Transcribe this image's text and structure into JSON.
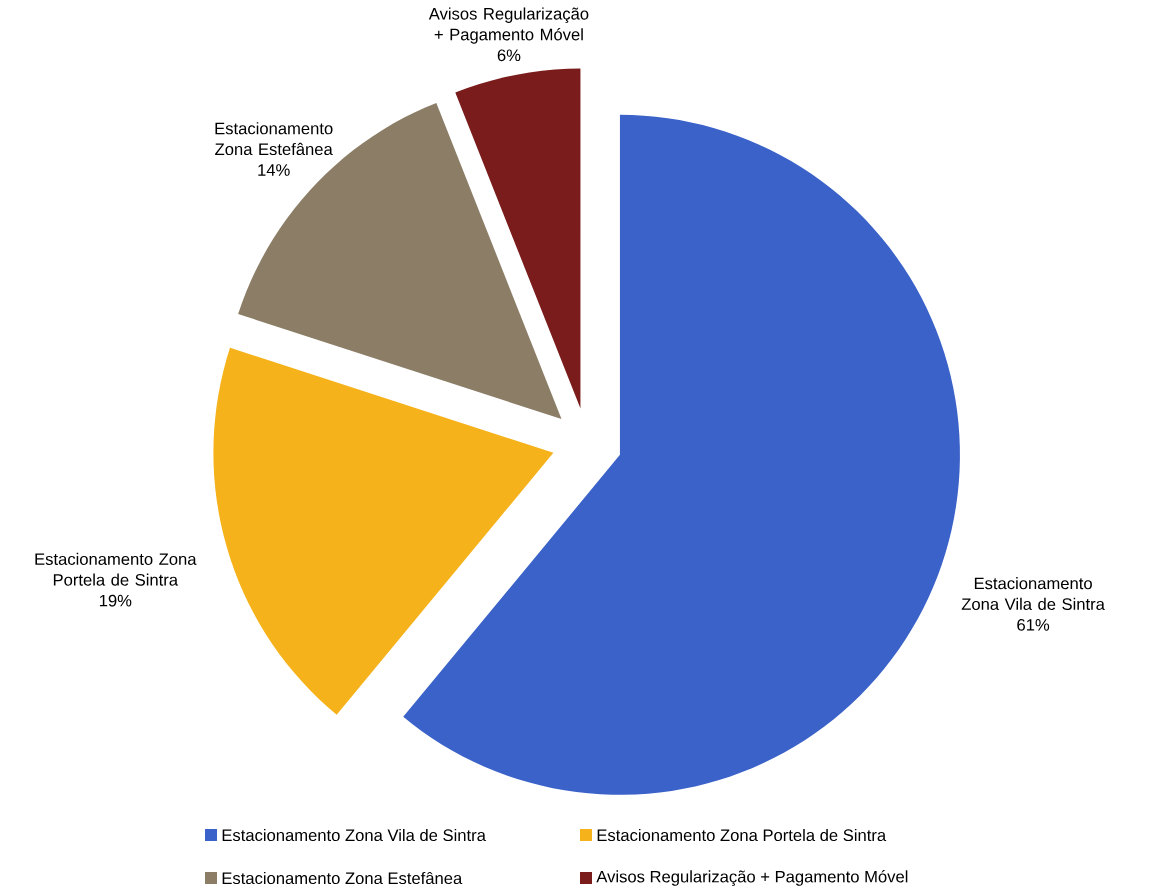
{
  "chart_data": {
    "type": "pie",
    "categories": [
      "Estacionamento Zona Vila de Sintra",
      "Estacionamento Zona Portela de Sintra",
      "Estacionamento Zona Estefânea",
      "Avisos Regularização + Pagamento Móvel"
    ],
    "values": [
      61,
      19,
      14,
      6
    ],
    "value_labels": [
      "61%",
      "19%",
      "14%",
      "6%"
    ],
    "colors": [
      "#3a62c8",
      "#f5b21a",
      "#8b7d66",
      "#7a1c1c"
    ],
    "legend": "bottom"
  }
}
